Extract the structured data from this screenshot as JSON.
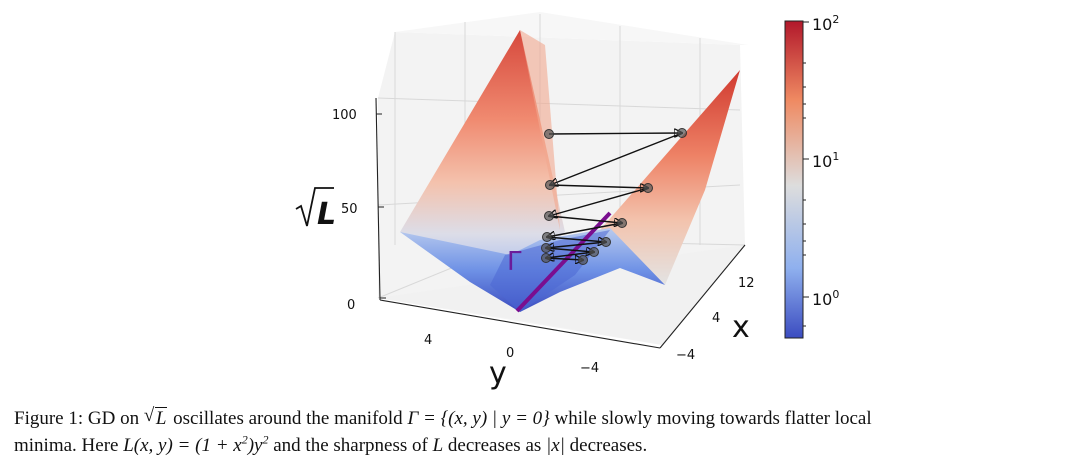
{
  "figure": {
    "z_axis_label": "L",
    "z_ticks": [
      "100",
      "50",
      "0"
    ],
    "y_axis_label": "y",
    "y_ticks": [
      "4",
      "0",
      "−4"
    ],
    "x_axis_label": "x",
    "x_ticks": [
      "12",
      "4",
      "−4"
    ],
    "manifold_label": "Γ",
    "colorbar": {
      "scale": "log",
      "ticks": [
        {
          "base": "10",
          "exp": "2"
        },
        {
          "base": "10",
          "exp": "1"
        },
        {
          "base": "10",
          "exp": "0"
        }
      ],
      "colors": {
        "top": "#b2182b",
        "upper": "#ef8a62",
        "mid": "#dddddd",
        "lower": "#7fa6e8",
        "bottom": "#3b4cc0"
      }
    },
    "colors": {
      "manifold": "#7a0e8f",
      "arrows": "#111111",
      "points": "#555555"
    }
  },
  "caption": {
    "line1_a": "Figure 1: GD on ",
    "sqrt_arg": "L",
    "line1_b": " oscillates around the manifold ",
    "gamma_def": "Γ = {(x, y) | y = 0}",
    "line1_c": " while slowly moving towards flatter local",
    "line2_a": "minima. Here ",
    "loss_def_lhs": "L(x, y) = (1 + x",
    "loss_def_sup1": "2",
    "loss_def_mid": ")y",
    "loss_def_sup2": "2",
    "line2_b": " and the sharpness of ",
    "L2": "L",
    "line2_c": " decreases as ",
    "absx": "|x|",
    "line2_d": " decreases."
  }
}
